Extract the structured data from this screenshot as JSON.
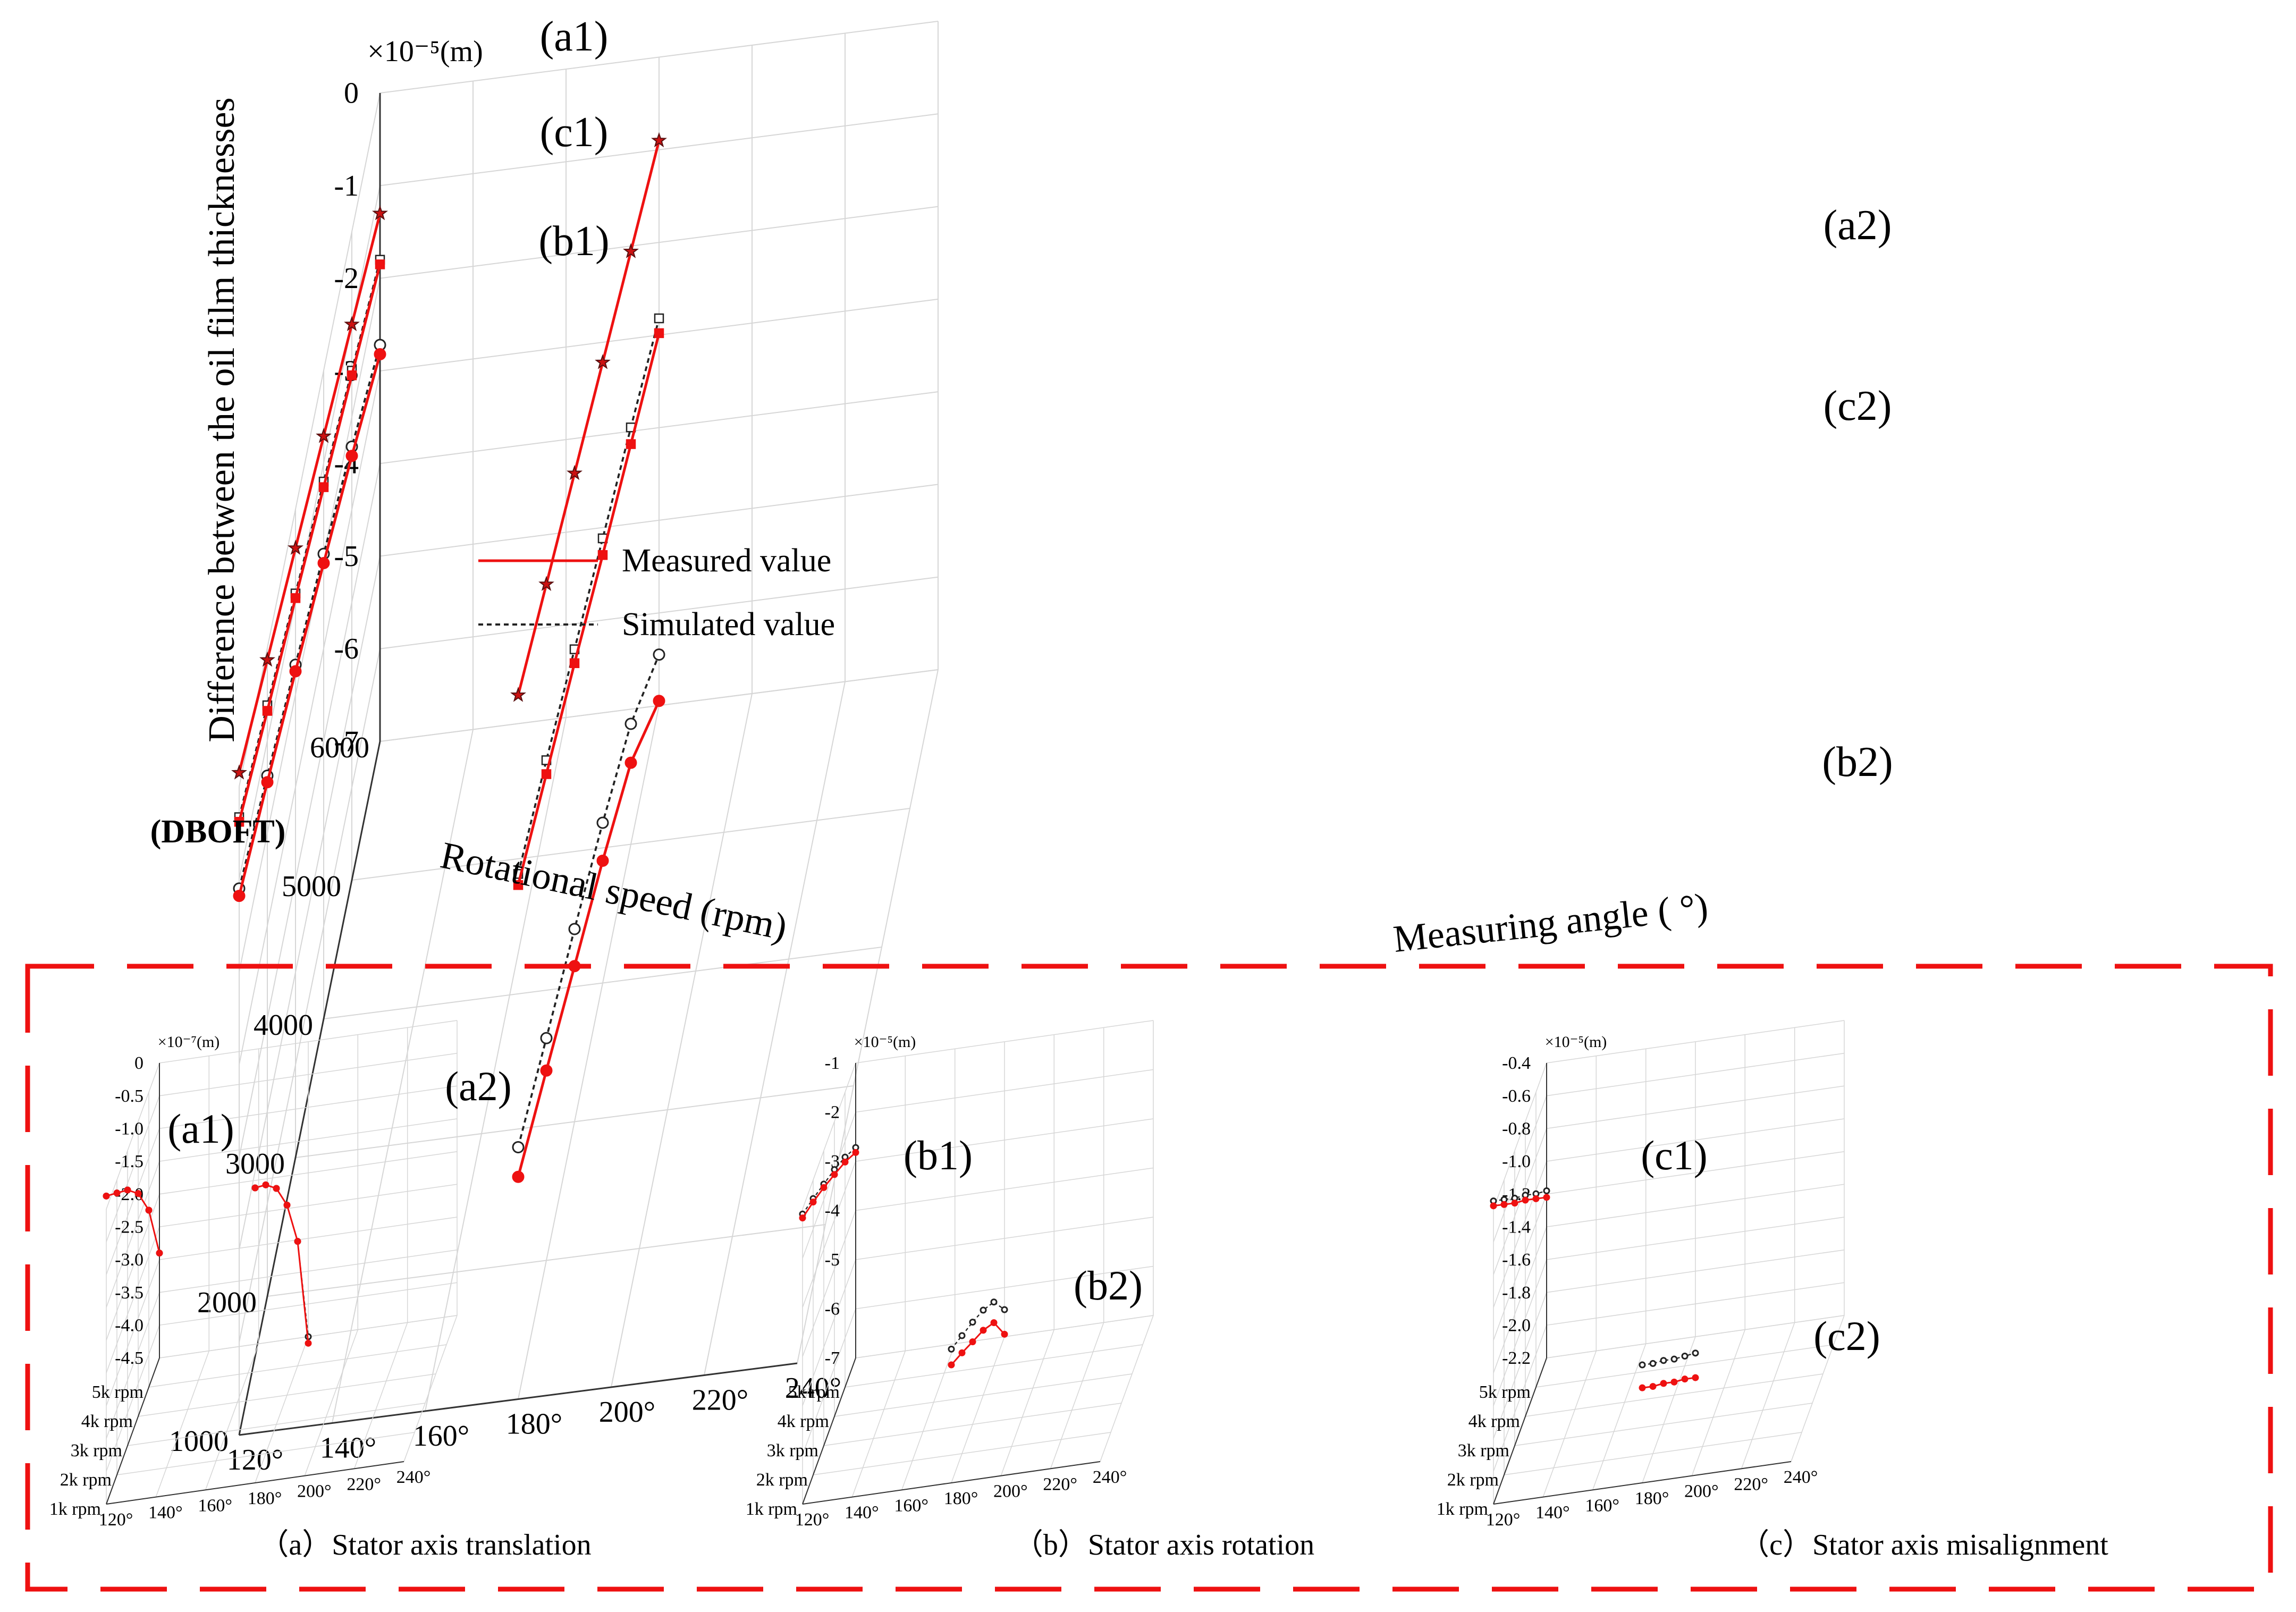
{
  "colors": {
    "measured": "#ee1111",
    "simulated": "#222222",
    "frame": "#ee1111",
    "grid": "#d6d6d6",
    "axis": "#333333"
  },
  "chart_data": [
    {
      "id": "main",
      "type": "line",
      "projection": "3d",
      "zlabel": "Difference between the oil film thicknesses",
      "unit_label": "×10⁻⁵(m)",
      "xlabel": "Measuring angle ( °)",
      "ylabel": "Rotational speed (rpm)",
      "tag": "(DBOFT)",
      "xlim": [
        120,
        240
      ],
      "ylim": [
        1000,
        6000
      ],
      "zlim": [
        -7,
        0
      ],
      "x_ticks": [
        "120°",
        "140°",
        "160°",
        "180°",
        "200°",
        "220°",
        "240°"
      ],
      "y_ticks": [
        "1000",
        "2000",
        "3000",
        "4000",
        "5000",
        "6000"
      ],
      "z_ticks": [
        "0",
        "-1",
        "-2",
        "-3",
        "-4",
        "-5",
        "-6",
        "-7"
      ],
      "legend": {
        "position": "left-middle",
        "measured": "Measured value",
        "simulated": "Simulated value"
      },
      "curve_labels": [
        "(a1)",
        "(a2)",
        "(b1)",
        "(b2)",
        "(c1)",
        "(c2)"
      ],
      "series": [
        {
          "name": "a1",
          "marker": "star",
          "angle": 120,
          "speed": [
            1000,
            2000,
            3000,
            4000,
            5000,
            6000
          ],
          "measured": [
            0.15,
            -0.13,
            -0.42,
            -0.71,
            -1.0,
            -1.3
          ],
          "simulated": [
            0.15,
            -0.13,
            -0.42,
            -0.71,
            -1.0,
            -1.3
          ]
        },
        {
          "name": "a2",
          "marker": "star",
          "angle": 180,
          "speed": [
            1000,
            2000,
            3000,
            4000,
            5000,
            6000
          ],
          "measured": [
            0.6,
            0.3,
            0.0,
            -0.3,
            -0.6,
            -0.9
          ],
          "simulated": [
            0.6,
            0.3,
            0.0,
            -0.3,
            -0.6,
            -0.9
          ]
        },
        {
          "name": "c1",
          "marker": "square",
          "angle": 120,
          "speed": [
            1000,
            2000,
            3000,
            4000,
            5000,
            6000
          ],
          "measured": [
            -0.38,
            -0.68,
            -0.96,
            -1.26,
            -1.55,
            -1.85
          ],
          "simulated": [
            -0.33,
            -0.62,
            -0.91,
            -1.2,
            -1.5,
            -1.8
          ]
        },
        {
          "name": "c2",
          "marker": "square",
          "angle": 180,
          "speed": [
            1000,
            2000,
            3000,
            4000,
            5000,
            6000
          ],
          "measured": [
            -1.45,
            -1.75,
            -2.05,
            -2.38,
            -2.68,
            -2.98
          ],
          "simulated": [
            -1.33,
            -1.6,
            -1.9,
            -2.2,
            -2.5,
            -2.82
          ]
        },
        {
          "name": "b1",
          "marker": "circle",
          "angle": 120,
          "speed": [
            1000,
            2000,
            3000,
            4000,
            5000,
            6000
          ],
          "measured": [
            -1.18,
            -1.45,
            -1.75,
            -2.08,
            -2.42,
            -2.82
          ],
          "simulated": [
            -1.1,
            -1.38,
            -1.68,
            -1.98,
            -2.32,
            -2.72
          ]
        },
        {
          "name": "b2",
          "marker": "circle",
          "angle": 180,
          "speed": [
            1000,
            2000,
            3000,
            4000,
            5000,
            6000
          ],
          "measured": [
            -4.6,
            -4.95,
            -5.32,
            -5.68,
            -6.12,
            -6.95
          ],
          "simulated": [
            -4.28,
            -4.6,
            -4.92,
            -5.27,
            -5.7,
            -6.45
          ]
        }
      ]
    },
    {
      "id": "small-a",
      "type": "line",
      "projection": "3d",
      "title": "（a）Stator axis translation",
      "unit_label": "×10⁻⁷(m)",
      "zlim": [
        -4.5,
        0
      ],
      "z_ticks": [
        "0",
        "-0.5",
        "-1.0",
        "-1.5",
        "-2.0",
        "-2.5",
        "-3.0",
        "-3.5",
        "-4.0",
        "-4.5"
      ],
      "x_ticks": [
        "120°",
        "140°",
        "160°",
        "180°",
        "200°",
        "220°",
        "240°"
      ],
      "y_ticks": [
        "1k rpm",
        "2k rpm",
        "3k rpm",
        "4k rpm",
        "5k rpm"
      ],
      "curve_labels": [
        "(a1)",
        "(a2)"
      ],
      "series": [
        {
          "name": "a1",
          "angle": 120,
          "speed": [
            1000,
            2000,
            3000,
            4000,
            5000,
            6000
          ],
          "measured": [
            0.2,
            -0.2,
            -0.6,
            -1.1,
            -1.8,
            -2.9
          ],
          "simulated": [
            0.2,
            -0.2,
            -0.6,
            -1.1,
            -1.8,
            -2.9
          ]
        },
        {
          "name": "a2",
          "angle": 180,
          "speed": [
            1000,
            2000,
            3000,
            4000,
            5000,
            6000
          ],
          "measured": [
            0.0,
            -0.4,
            -0.9,
            -1.6,
            -2.6,
            -4.6
          ],
          "simulated": [
            0.0,
            -0.4,
            -0.9,
            -1.6,
            -2.6,
            -4.5
          ]
        }
      ]
    },
    {
      "id": "small-b",
      "type": "line",
      "projection": "3d",
      "title": "（b）Stator axis rotation",
      "unit_label": "×10⁻⁵(m)",
      "zlim": [
        -7,
        -1
      ],
      "z_ticks": [
        "-1",
        "-2",
        "-3",
        "-4",
        "-5",
        "-6",
        "-7"
      ],
      "x_ticks": [
        "120°",
        "140°",
        "160°",
        "180°",
        "200°",
        "220°",
        "240°"
      ],
      "y_ticks": [
        "1k rpm",
        "2k rpm",
        "3k rpm",
        "4k rpm",
        "5k rpm"
      ],
      "curve_labels": [
        "(b1)",
        "(b2)"
      ],
      "series": [
        {
          "name": "b1",
          "angle": 120,
          "speed": [
            1000,
            2000,
            3000,
            4000,
            5000,
            6000
          ],
          "measured": [
            -1.18,
            -1.45,
            -1.75,
            -2.08,
            -2.42,
            -2.82
          ],
          "simulated": [
            -1.1,
            -1.38,
            -1.68,
            -1.98,
            -2.32,
            -2.72
          ]
        },
        {
          "name": "b2",
          "angle": 180,
          "speed": [
            1000,
            2000,
            3000,
            4000,
            5000,
            6000
          ],
          "measured": [
            -4.6,
            -4.95,
            -5.32,
            -5.68,
            -6.12,
            -6.95
          ],
          "simulated": [
            -4.28,
            -4.6,
            -4.92,
            -5.27,
            -5.7,
            -6.45
          ]
        }
      ]
    },
    {
      "id": "small-c",
      "type": "line",
      "projection": "3d",
      "title": "（c）Stator axis misalignment",
      "unit_label": "×10⁻⁵(m)",
      "zlim": [
        -2.2,
        -0.4
      ],
      "z_ticks": [
        "-0.4",
        "-0.6",
        "-0.8",
        "-1.0",
        "-1.2",
        "-1.4",
        "-1.6",
        "-1.8",
        "-2.0",
        "-2.2"
      ],
      "x_ticks": [
        "120°",
        "140°",
        "160°",
        "180°",
        "200°",
        "220°",
        "240°"
      ],
      "y_ticks": [
        "1k rpm",
        "2k rpm",
        "3k rpm",
        "4k rpm",
        "5k rpm"
      ],
      "curve_labels": [
        "(c1)",
        "(c2)"
      ],
      "series": [
        {
          "name": "c1",
          "angle": 120,
          "speed": [
            1000,
            2000,
            3000,
            4000,
            5000,
            6000
          ],
          "measured": [
            -0.38,
            -0.55,
            -0.72,
            -0.88,
            -1.05,
            -1.22
          ],
          "simulated": [
            -0.35,
            -0.52,
            -0.69,
            -0.85,
            -1.02,
            -1.18
          ]
        },
        {
          "name": "c2",
          "angle": 180,
          "speed": [
            1000,
            2000,
            3000,
            4000,
            5000,
            6000
          ],
          "measured": [
            -1.62,
            -1.79,
            -1.95,
            -2.12,
            -2.28,
            -2.45
          ],
          "simulated": [
            -1.48,
            -1.65,
            -1.81,
            -1.98,
            -2.14,
            -2.3
          ]
        }
      ]
    }
  ]
}
